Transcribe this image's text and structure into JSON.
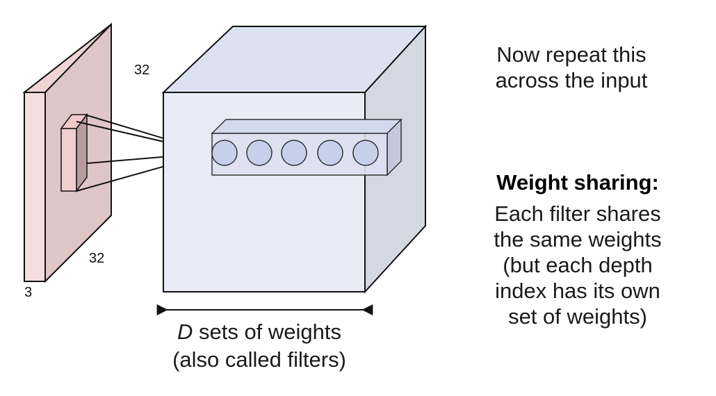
{
  "input_volume": {
    "height_label": "32",
    "width_label": "32",
    "depth_label": "3"
  },
  "caption": {
    "var": "D",
    "line1_rest": " sets of weights",
    "line2": "(also called filters)"
  },
  "note_repeat": {
    "line1": "Now repeat this",
    "line2": "across the input"
  },
  "weight_sharing": {
    "title": "Weight sharing:",
    "lines": [
      "Each filter shares",
      "the same weights",
      "(but each depth",
      "index has its own",
      "set of weights)"
    ]
  },
  "colors": {
    "input_front": "#e3cccc",
    "input_side": "#f5dcdc",
    "output_front": "#e9ecf6",
    "output_top": "#dde2f1",
    "output_side": "#d2d6e1",
    "neuron_fill": "#c6d0ea"
  }
}
